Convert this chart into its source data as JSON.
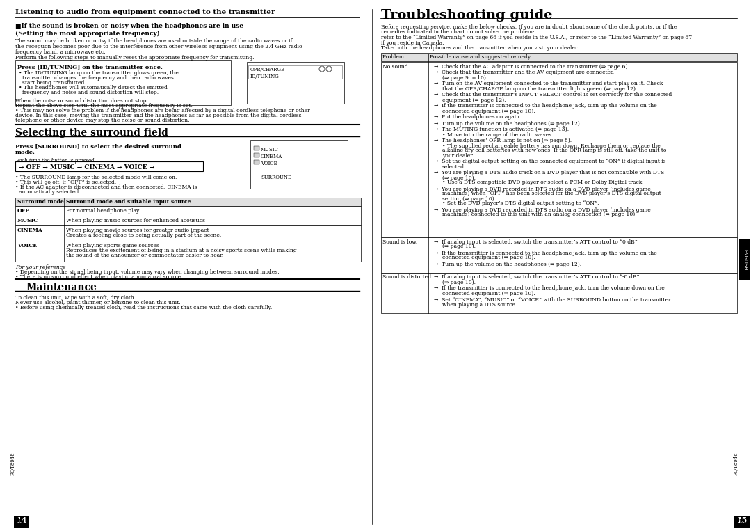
{
  "page_bg": "#ffffff",
  "left_page_num": "14",
  "right_page_num": "15",
  "side_label": "ENGLISH",
  "rqt_code": "RQT8948",
  "left_title": "Listening to audio from equipment connected to the transmitter",
  "left_section1_heading": "■If the sound is broken or noisy when the headphones are in use\n(Setting the most appropriate frequency)",
  "left_section1_body": "The sound may be broken or noisy if the headphones are used outside the range of the radio waves or if\nthe reception becomes poor due to the interference from other wireless equipment using the 2.4 GHz radio\nfrequency band, a microwave etc.\nPerform the following steps to manually reset the appropriate frequency for transmitting.",
  "left_subsection1_heading": "Press [ID/TUNING] on the transmitter once.",
  "left_subsection1_bullets": [
    "The ID/TUNING lamp on the transmitter glows green, the\ntransmitter changes the frequency and then radio waves\nstart being transmitted.",
    "The headphones will automatically detect the emitted\nfrequency and noise and sound distortion will stop."
  ],
  "left_subsection1_note_heading": "When the noise or sound distortion does not stop",
  "left_subsection1_note_body": "Repeat the above step until the most appropriate frequency is set.\n• This may not solve the problem if the headphones are being affected by a digital cordless telephone or other\ndevice. In this case, moving the transmitter and the headphones as far as possible from the digital cordless\ntelephone or other device may stop the noise or sound distortion.",
  "left_section2_heading": "Selecting the surround field",
  "left_section2_sub": "Press [SURROUND] to select the desired surround\nmode.",
  "left_section2_caption": "Each time the button is pressed",
  "left_section2_sequence": "→ OFF → MUSIC → CINEMA → VOICE →",
  "left_section2_bullets": [
    "The SURROUND lamp for the selected mode will come on.",
    "This will go off, if “OFF” is selected.",
    "If the AC adaptor is disconnected and then connected, CINEMA is\nautomatically selected."
  ],
  "surround_table_headers": [
    "Surround mode",
    "Surround mode and suitable input source"
  ],
  "surround_table_rows": [
    [
      "OFF",
      "For normal headphone play"
    ],
    [
      "MUSIC",
      "When playing music sources for enhanced acoustics"
    ],
    [
      "CINEMA",
      "When playing movie sources for greater audio impact\nCreates a feeling close to being actually part of the scene."
    ],
    [
      "VOICE",
      "When playing sports game sources\nReproduces the excitement of being in a stadium at a noisy sports scene while making\nthe sound of the announcer or commentator easier to hear."
    ]
  ],
  "left_reference_heading": "For your reference",
  "left_reference_bullets": [
    "Depending on the signal being input, volume may vary when changing between surround modes.",
    "There is no surround effect when playing a monaural source."
  ],
  "maintenance_heading": "Maintenance",
  "maintenance_body": "To clean this unit, wipe with a soft, dry cloth.\nNever use alcohol, paint thinner, or benzine to clean this unit.\n• Before using chemically treated cloth, read the instructions that came with the cloth carefully.",
  "right_title": "Troubleshooting guide",
  "right_intro": "Before requesting service, make the below checks. If you are in doubt about some of the check points, or if the\nremedies indicated in the chart do not solve the problem:\nrefer to the “Limited Warranty” on page 66 if you reside in the U.S.A., or refer to the “Limited Warranty” on page 67\nif you reside in Canada.\nTake both the headphones and the transmitter when you visit your dealer.",
  "trouble_table_headers": [
    "Problem",
    "Possible cause and suggested remedy"
  ],
  "trouble_table_rows": [
    [
      "No sound.",
      [
        "Check that the AC adaptor is connected to the transmitter (⇒ page 6).",
        "Check that the transmitter and the AV equipment are connected\n(⇒ page 9 to 10).",
        "Turn on the AV equipment connected to the transmitter and start play on it. Check\nthat the OPR/CHARGE lamp on the transmitter lights green (⇒ page 12).",
        "Check that the transmitter’s INPUT SELECT control is set correctly for the connected\nequipment (⇒ page 12).",
        "If the transmitter is connected to the headphone jack, turn up the volume on the\nconnected equipment (⇒ page 10).",
        "Put the headphones on again.",
        "Turn up the volume on the headphones (⇒ page 12).",
        "The MUTING function is activated (⇒ page 13).\n• Move into the range of the radio waves.",
        "The headphones’ OPR lamp is not on (⇒ page 8).\n• The supplied rechargeable battery has run down. Recharge them or replace the\nalkaline dry cell batteries with new ones. If the OPR lamp is still off, take the unit to\nyour dealer.",
        "Set the digital output setting on the connected equipment to “ON” if digital input is\nselected.",
        "You are playing a DTS audio track on a DVD player that is not compatible with DTS\n(⇒ page 10).\n• Use a DTS compatible DVD player or select a PCM or Dolby Digital track.",
        "You are playing a DVD recorded in DTS audio on a DVD player (includes game\nmachines) when “OFF” has been selected for the DVD player’s DTS digital output\nsetting (⇒ page 10).\n• Set the DVD player’s DTS digital output setting to “ON”.",
        "You are playing a DVD recorded in DTS audio on a DVD player (includes game\nmachines) connected to this unit with an analog connection (⇒ page 10)."
      ]
    ],
    [
      "Sound is low.",
      [
        "If analog input is selected, switch the transmitter’s ATT control to “0 dB”\n(⇒ page 10).",
        "If the transmitter is connected to the headphone jack, turn up the volume on the\nconnected equipment (⇒ page 10).",
        "Turn up the volume on the headphones (⇒ page 12)."
      ]
    ],
    [
      "Sound is distorted.",
      [
        "If analog input is selected, switch the transmitter’s ATT control to “-8 dB”\n(⇒ page 10).",
        "If the transmitter is connected to the headphone jack, turn the volume down on the\nconnected equipment (⇒ page 10).",
        "Set “CINEMA”, “MUSIC” or “VOICE” with the SURROUND button on the transmitter\nwhen playing a DTS source."
      ]
    ]
  ]
}
